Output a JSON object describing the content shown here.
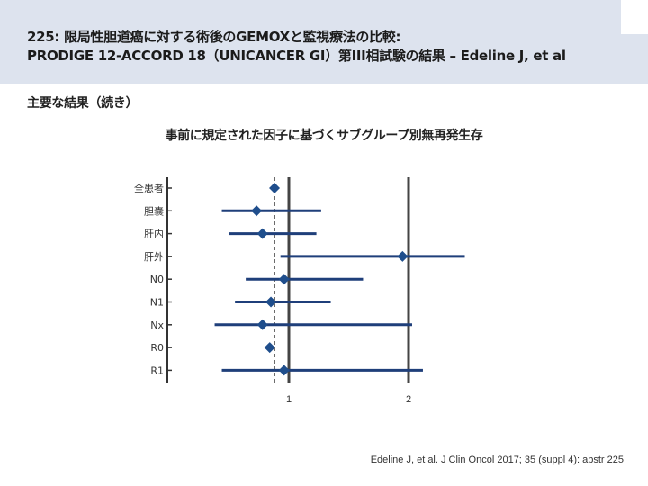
{
  "header": {
    "title_line1": "225: 限局性胆道癌に対する術後のGEMOXと監視療法の比較:",
    "title_line2": "PRODIGE 12-ACCORD 18（UNICANCER GI）第III相試験の結果 – Edeline J, et al"
  },
  "section_heading": "主要な結果（続き）",
  "citation": "Edeline J, et al. J Clin Oncol 2017; 35 (suppl 4): abstr 225",
  "colors": {
    "header_bg": "#dde3ee",
    "marker": "#1f4e8c",
    "ci_line": "#1f3f7a",
    "reference_line": "#444444",
    "axis": "#333333"
  },
  "chart_data": {
    "type": "forest",
    "title": "事前に規定された因子に基づくサブグループ別無再発生存",
    "xlabel": "",
    "ylabel": "",
    "xticks": [
      1,
      2
    ],
    "xlim": [
      0.25,
      2.55
    ],
    "reference_value": 1,
    "rows": [
      {
        "label": "全患者",
        "hr": 0.88,
        "ci_low": null,
        "ci_high": null
      },
      {
        "label": "胆嚢",
        "hr": 0.73,
        "ci_low": 0.44,
        "ci_high": 1.27
      },
      {
        "label": "肝内",
        "hr": 0.78,
        "ci_low": 0.5,
        "ci_high": 1.23
      },
      {
        "label": "肝外",
        "hr": 1.95,
        "ci_low": 0.93,
        "ci_high": 2.47
      },
      {
        "label": "N0",
        "hr": 0.96,
        "ci_low": 0.64,
        "ci_high": 1.62
      },
      {
        "label": "N1",
        "hr": 0.85,
        "ci_low": 0.55,
        "ci_high": 1.35
      },
      {
        "label": "Nx",
        "hr": 0.78,
        "ci_low": 0.38,
        "ci_high": 2.03
      },
      {
        "label": "R0",
        "hr": 0.84,
        "ci_low": null,
        "ci_high": null
      },
      {
        "label": "R1",
        "hr": 0.96,
        "ci_low": 0.44,
        "ci_high": 2.12
      }
    ]
  }
}
